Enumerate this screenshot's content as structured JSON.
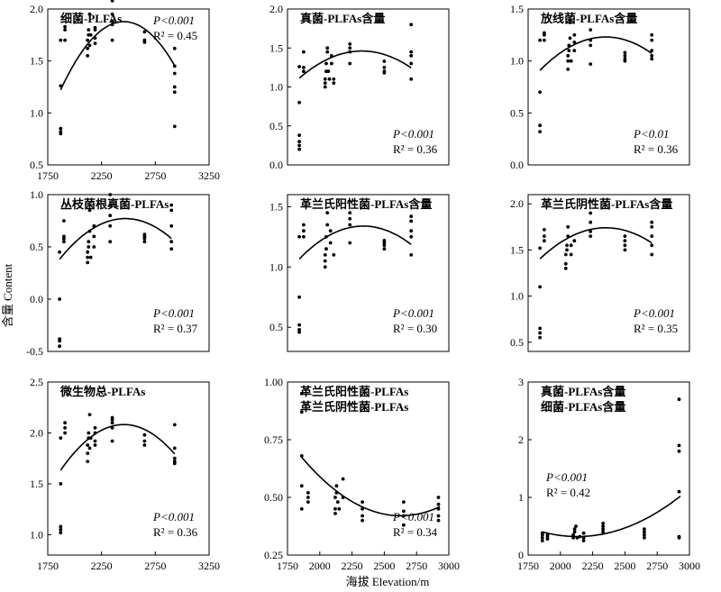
{
  "figure": {
    "ylabel": "含量 Content",
    "xlabel": "海拔 Elevation/m"
  },
  "chart_data": [
    {
      "type": "scatter",
      "title": "细菌-PLFAs",
      "xlim": [
        1750,
        3250
      ],
      "xticks": [
        1750,
        2250,
        2750,
        3250
      ],
      "ylim": [
        0.5,
        2.0
      ],
      "yticks": [
        0.5,
        1.0,
        1.5,
        2.0
      ],
      "stat_p": "P<0.001",
      "stat_r2": "R² = 0.45",
      "points": [
        [
          1870,
          0.82
        ],
        [
          1870,
          0.85
        ],
        [
          1870,
          0.8
        ],
        [
          1870,
          1.26
        ],
        [
          1870,
          1.7
        ],
        [
          1910,
          1.8
        ],
        [
          1910,
          1.83
        ],
        [
          1910,
          1.7
        ],
        [
          2120,
          1.55
        ],
        [
          2120,
          1.62
        ],
        [
          2120,
          1.7
        ],
        [
          2130,
          1.75
        ],
        [
          2130,
          1.8
        ],
        [
          2140,
          1.95
        ],
        [
          2140,
          1.65
        ],
        [
          2150,
          1.75
        ],
        [
          2190,
          1.72
        ],
        [
          2190,
          1.67
        ],
        [
          2190,
          1.82
        ],
        [
          2190,
          1.8
        ],
        [
          2350,
          1.85
        ],
        [
          2350,
          1.88
        ],
        [
          2350,
          1.7
        ],
        [
          2350,
          1.95
        ],
        [
          2350,
          2.08
        ],
        [
          2650,
          1.68
        ],
        [
          2650,
          1.7
        ],
        [
          2650,
          1.78
        ],
        [
          2930,
          1.62
        ],
        [
          2930,
          1.45
        ],
        [
          2930,
          1.38
        ],
        [
          2930,
          1.25
        ],
        [
          2930,
          1.2
        ],
        [
          2930,
          0.87
        ]
      ],
      "curve": [
        1870,
        2930,
        -1.9e-06,
        0.00934,
        -9.6
      ]
    },
    {
      "type": "scatter",
      "title": "真菌-PLFAs含量",
      "xlim": [
        1750,
        3250
      ],
      "xticks": [],
      "ylim": [
        0,
        2.0
      ],
      "yticks": [
        0,
        0.5,
        1.0,
        1.5,
        2.0
      ],
      "stat_p": "P<0.001",
      "stat_r2": "R² = 0.36",
      "points": [
        [
          1860,
          0.3
        ],
        [
          1860,
          0.38
        ],
        [
          1860,
          0.25
        ],
        [
          1860,
          0.2
        ],
        [
          1860,
          0.8
        ],
        [
          1860,
          1.26
        ],
        [
          1900,
          1.45
        ],
        [
          1900,
          1.25
        ],
        [
          1900,
          1.2
        ],
        [
          2100,
          1.0
        ],
        [
          2100,
          1.05
        ],
        [
          2100,
          1.1
        ],
        [
          2110,
          1.2
        ],
        [
          2110,
          1.3
        ],
        [
          2120,
          1.45
        ],
        [
          2120,
          1.5
        ],
        [
          2130,
          1.2
        ],
        [
          2140,
          1.1
        ],
        [
          2160,
          1.4
        ],
        [
          2160,
          1.3
        ],
        [
          2180,
          1.05
        ],
        [
          2180,
          1.1
        ],
        [
          2330,
          1.5
        ],
        [
          2330,
          1.55
        ],
        [
          2330,
          1.45
        ],
        [
          2330,
          1.3
        ],
        [
          2650,
          1.33
        ],
        [
          2650,
          1.2
        ],
        [
          2650,
          1.25
        ],
        [
          2650,
          1.18
        ],
        [
          2900,
          1.8
        ],
        [
          2900,
          1.45
        ],
        [
          2900,
          1.4
        ],
        [
          2900,
          1.3
        ],
        [
          2900,
          1.1
        ]
      ],
      "curve": [
        1860,
        2900,
        -1.03e-06,
        0.00503,
        -4.68
      ]
    },
    {
      "type": "scatter",
      "title": "放线菌-PLFAs含量",
      "xlim": [
        1750,
        3250
      ],
      "xticks": [],
      "ylim": [
        0,
        1.5
      ],
      "yticks": [
        0,
        0.5,
        1.0,
        1.5
      ],
      "stat_p": "P<0.01",
      "stat_r2": "R² = 0.36",
      "points": [
        [
          1860,
          0.32
        ],
        [
          1860,
          0.38
        ],
        [
          1860,
          0.7
        ],
        [
          1860,
          1.2
        ],
        [
          1900,
          1.25
        ],
        [
          1900,
          1.27
        ],
        [
          1900,
          1.2
        ],
        [
          2120,
          0.92
        ],
        [
          2120,
          1.0
        ],
        [
          2120,
          1.05
        ],
        [
          2130,
          1.1
        ],
        [
          2130,
          1.15
        ],
        [
          2140,
          1.22
        ],
        [
          2140,
          1.37
        ],
        [
          2150,
          1.0
        ],
        [
          2180,
          1.1
        ],
        [
          2180,
          1.18
        ],
        [
          2180,
          1.25
        ],
        [
          2330,
          1.15
        ],
        [
          2330,
          1.2
        ],
        [
          2330,
          1.3
        ],
        [
          2330,
          0.97
        ],
        [
          2650,
          1.0
        ],
        [
          2650,
          1.05
        ],
        [
          2650,
          1.02
        ],
        [
          2650,
          1.08
        ],
        [
          2900,
          1.25
        ],
        [
          2900,
          1.2
        ],
        [
          2900,
          1.1
        ],
        [
          2900,
          1.05
        ],
        [
          2900,
          1.02
        ]
      ],
      "curve": [
        1860,
        2900,
        -8.6e-07,
        0.00425,
        -4.02
      ]
    },
    {
      "type": "scatter",
      "title": "丛枝菌根真菌-PLFAs",
      "xlim": [
        1750,
        3250
      ],
      "xticks": [],
      "ylim": [
        -0.5,
        1.0
      ],
      "yticks": [
        -0.5,
        0,
        0.5,
        1.0
      ],
      "stat_p": "P<0.001",
      "stat_r2": "R² = 0.37",
      "points": [
        [
          1860,
          -0.45
        ],
        [
          1860,
          -0.4
        ],
        [
          1860,
          -0.38
        ],
        [
          1860,
          0.0
        ],
        [
          1860,
          0.45
        ],
        [
          1900,
          0.55
        ],
        [
          1900,
          0.6
        ],
        [
          1900,
          0.75
        ],
        [
          1900,
          0.58
        ],
        [
          2120,
          0.35
        ],
        [
          2120,
          0.4
        ],
        [
          2120,
          0.45
        ],
        [
          2130,
          0.5
        ],
        [
          2130,
          0.55
        ],
        [
          2140,
          0.65
        ],
        [
          2140,
          0.85
        ],
        [
          2150,
          0.4
        ],
        [
          2180,
          0.5
        ],
        [
          2180,
          0.6
        ],
        [
          2180,
          0.7
        ],
        [
          2330,
          0.55
        ],
        [
          2330,
          0.7
        ],
        [
          2330,
          0.8
        ],
        [
          2330,
          0.9
        ],
        [
          2330,
          1.0
        ],
        [
          2650,
          0.55
        ],
        [
          2650,
          0.6
        ],
        [
          2650,
          0.62
        ],
        [
          2650,
          0.58
        ],
        [
          2900,
          0.9
        ],
        [
          2900,
          0.85
        ],
        [
          2900,
          0.7
        ],
        [
          2900,
          0.55
        ],
        [
          2900,
          0.48
        ]
      ],
      "curve": [
        1860,
        2900,
        -1.04e-06,
        0.00514,
        -5.58
      ]
    },
    {
      "type": "scatter",
      "title": "革兰氏阳性菌-PLFAs含量",
      "xlim": [
        1750,
        3250
      ],
      "xticks": [],
      "ylim": [
        0.3,
        1.6
      ],
      "yticks": [
        0.5,
        1.0,
        1.5
      ],
      "stat_p": "P<0.001",
      "stat_r2": "R² = 0.30",
      "points": [
        [
          1860,
          0.48
        ],
        [
          1860,
          0.52
        ],
        [
          1860,
          0.46
        ],
        [
          1860,
          0.75
        ],
        [
          1860,
          1.25
        ],
        [
          1900,
          1.35
        ],
        [
          1900,
          1.3
        ],
        [
          1900,
          1.25
        ],
        [
          2100,
          1.0
        ],
        [
          2100,
          1.05
        ],
        [
          2100,
          1.1
        ],
        [
          2110,
          1.15
        ],
        [
          2110,
          1.25
        ],
        [
          2120,
          1.35
        ],
        [
          2120,
          1.45
        ],
        [
          2150,
          1.2
        ],
        [
          2150,
          1.3
        ],
        [
          2180,
          1.1
        ],
        [
          2330,
          1.35
        ],
        [
          2330,
          1.4
        ],
        [
          2330,
          1.45
        ],
        [
          2330,
          1.2
        ],
        [
          2650,
          1.18
        ],
        [
          2650,
          1.2
        ],
        [
          2650,
          1.22
        ],
        [
          2650,
          1.15
        ],
        [
          2900,
          1.42
        ],
        [
          2900,
          1.38
        ],
        [
          2900,
          1.3
        ],
        [
          2900,
          1.25
        ],
        [
          2900,
          1.1
        ]
      ],
      "curve": [
        1860,
        2900,
        -7.7e-07,
        0.00378,
        -3.3
      ]
    },
    {
      "type": "scatter",
      "title": "革兰氏阴性菌-PLFAs含量",
      "xlim": [
        1750,
        3250
      ],
      "xticks": [],
      "ylim": [
        0.4,
        2.1
      ],
      "yticks": [
        0.5,
        1.0,
        1.5,
        2.0
      ],
      "stat_p": "P<0.001",
      "stat_r2": "R² = 0.35",
      "points": [
        [
          1860,
          0.55
        ],
        [
          1860,
          0.6
        ],
        [
          1860,
          0.65
        ],
        [
          1860,
          1.1
        ],
        [
          1860,
          1.52
        ],
        [
          1900,
          1.6
        ],
        [
          1900,
          1.65
        ],
        [
          1900,
          1.72
        ],
        [
          2100,
          1.3
        ],
        [
          2100,
          1.35
        ],
        [
          2100,
          1.45
        ],
        [
          2110,
          1.5
        ],
        [
          2110,
          1.55
        ],
        [
          2120,
          1.65
        ],
        [
          2120,
          1.75
        ],
        [
          2150,
          1.45
        ],
        [
          2150,
          1.55
        ],
        [
          2180,
          1.6
        ],
        [
          2330,
          1.65
        ],
        [
          2330,
          1.7
        ],
        [
          2330,
          1.8
        ],
        [
          2330,
          1.9
        ],
        [
          2650,
          1.55
        ],
        [
          2650,
          1.6
        ],
        [
          2650,
          1.5
        ],
        [
          2650,
          1.65
        ],
        [
          2900,
          1.8
        ],
        [
          2900,
          1.75
        ],
        [
          2900,
          1.65
        ],
        [
          2900,
          1.55
        ],
        [
          2900,
          1.45
        ]
      ],
      "curve": [
        1860,
        2900,
        -9e-07,
        0.00445,
        -3.76
      ]
    },
    {
      "type": "scatter",
      "title": "微生物总-PLFAs",
      "xlim": [
        1750,
        3250
      ],
      "xticks": [
        1750,
        2250,
        2750,
        3250
      ],
      "ylim": [
        0.8,
        2.5
      ],
      "yticks": [
        1.0,
        1.5,
        2.0,
        2.5
      ],
      "stat_p": "P<0.001",
      "stat_r2": "R² = 0.36",
      "points": [
        [
          1870,
          1.02
        ],
        [
          1870,
          1.08
        ],
        [
          1870,
          1.05
        ],
        [
          1870,
          1.5
        ],
        [
          1870,
          1.95
        ],
        [
          1910,
          2.05
        ],
        [
          1910,
          2.1
        ],
        [
          1910,
          2.0
        ],
        [
          2120,
          1.72
        ],
        [
          2120,
          1.8
        ],
        [
          2120,
          1.88
        ],
        [
          2130,
          1.95
        ],
        [
          2130,
          2.0
        ],
        [
          2140,
          2.18
        ],
        [
          2140,
          1.85
        ],
        [
          2150,
          1.95
        ],
        [
          2190,
          1.88
        ],
        [
          2190,
          1.92
        ],
        [
          2190,
          2.05
        ],
        [
          2190,
          2.0
        ],
        [
          2350,
          2.1
        ],
        [
          2350,
          2.13
        ],
        [
          2350,
          1.92
        ],
        [
          2350,
          2.15
        ],
        [
          2350,
          2.05
        ],
        [
          2650,
          1.88
        ],
        [
          2650,
          1.92
        ],
        [
          2650,
          1.98
        ],
        [
          2930,
          2.08
        ],
        [
          2930,
          1.85
        ],
        [
          2930,
          1.75
        ],
        [
          2930,
          1.7
        ],
        [
          2930,
          1.72
        ]
      ],
      "curve": [
        1870,
        2930,
        -1.3e-06,
        0.00639,
        -5.77
      ]
    },
    {
      "type": "scatter",
      "title": "革兰氏阳性菌-PLFAs",
      "title2": "革兰氏阴性菌-PLFAs",
      "xlim": [
        1750,
        3000
      ],
      "xticks": [
        1750,
        2000,
        2250,
        2500,
        2750,
        3000
      ],
      "ylim": [
        0.25,
        1.0
      ],
      "yticks": [
        0.25,
        0.5,
        0.75,
        1.0
      ],
      "stat_p": "P<0.001",
      "stat_r2": "R² = 0.34",
      "points": [
        [
          1860,
          0.95
        ],
        [
          1860,
          0.87
        ],
        [
          1860,
          0.68
        ],
        [
          1860,
          0.55
        ],
        [
          1860,
          0.45
        ],
        [
          1910,
          0.52
        ],
        [
          1910,
          0.48
        ],
        [
          1910,
          0.5
        ],
        [
          2120,
          0.43
        ],
        [
          2120,
          0.45
        ],
        [
          2120,
          0.5
        ],
        [
          2130,
          0.52
        ],
        [
          2130,
          0.55
        ],
        [
          2140,
          0.48
        ],
        [
          2150,
          0.45
        ],
        [
          2180,
          0.5
        ],
        [
          2180,
          0.58
        ],
        [
          2330,
          0.42
        ],
        [
          2330,
          0.45
        ],
        [
          2330,
          0.48
        ],
        [
          2330,
          0.4
        ],
        [
          2650,
          0.38
        ],
        [
          2650,
          0.42
        ],
        [
          2650,
          0.44
        ],
        [
          2650,
          0.48
        ],
        [
          2920,
          0.45
        ],
        [
          2920,
          0.42
        ],
        [
          2920,
          0.4
        ],
        [
          2920,
          0.47
        ],
        [
          2920,
          0.5
        ]
      ],
      "curve": [
        1860,
        2930,
        4.3e-07,
        -0.00226,
        3.39
      ]
    },
    {
      "type": "scatter",
      "title": "真菌-PLFAs含量",
      "title2": "细菌-PLFAs含量",
      "xlim": [
        1750,
        3000
      ],
      "xticks": [
        1750,
        2000,
        2250,
        2500,
        2750,
        3000
      ],
      "ylim": [
        0,
        3
      ],
      "yticks": [
        0,
        1,
        2,
        3
      ],
      "stat_p": "P<0.001",
      "stat_r2": "R² = 0.42",
      "points": [
        [
          1860,
          0.25
        ],
        [
          1860,
          0.3
        ],
        [
          1860,
          0.35
        ],
        [
          1860,
          0.38
        ],
        [
          1900,
          0.28
        ],
        [
          1900,
          0.32
        ],
        [
          1900,
          0.35
        ],
        [
          2100,
          0.3
        ],
        [
          2100,
          0.35
        ],
        [
          2110,
          0.4
        ],
        [
          2110,
          0.45
        ],
        [
          2120,
          0.5
        ],
        [
          2130,
          0.3
        ],
        [
          2150,
          0.32
        ],
        [
          2180,
          0.25
        ],
        [
          2180,
          0.3
        ],
        [
          2180,
          0.38
        ],
        [
          2330,
          0.4
        ],
        [
          2330,
          0.45
        ],
        [
          2330,
          0.5
        ],
        [
          2330,
          0.55
        ],
        [
          2650,
          0.3
        ],
        [
          2650,
          0.35
        ],
        [
          2650,
          0.4
        ],
        [
          2650,
          0.45
        ],
        [
          2920,
          2.7
        ],
        [
          2920,
          1.9
        ],
        [
          2920,
          1.8
        ],
        [
          2920,
          1.1
        ],
        [
          2920,
          0.3
        ],
        [
          2920,
          0.32
        ]
      ],
      "curve": [
        1860,
        2930,
        1.1e-06,
        -0.00469,
        5.32
      ]
    }
  ]
}
